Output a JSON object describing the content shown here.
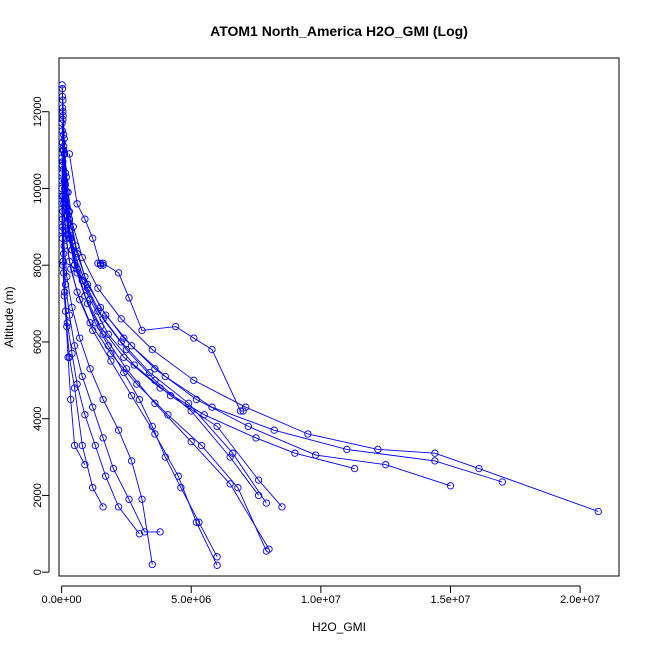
{
  "chart_data": {
    "type": "scatter",
    "title": "ATOM1 North_America H2O_GMI (Log)",
    "xlabel": "H2O_GMI",
    "ylabel": "Altitude (m)",
    "xlim": [
      -100000.0,
      21500000.0
    ],
    "ylim": [
      -100,
      13400
    ],
    "x_ticks": [
      0,
      5000000,
      10000000,
      15000000,
      20000000
    ],
    "x_tick_labels": [
      "0.0e+00",
      "5.0e+06",
      "1.0e+07",
      "1.5e+07",
      "2.0e+07"
    ],
    "y_ticks": [
      0,
      2000,
      4000,
      6000,
      8000,
      10000,
      12000
    ],
    "y_tick_labels": [
      "0",
      "2000",
      "4000",
      "6000",
      "8000",
      "10000",
      "12000"
    ],
    "series_color": "#0000ff",
    "marker": "open-circle",
    "connected": true,
    "grid": false,
    "legend": "none",
    "series": [
      {
        "x": [
          20000.0,
          30000.0,
          50000.0,
          80000.0,
          100000.0,
          150000.0,
          200000.0,
          250000.0,
          300000.0,
          400000.0,
          600000.0,
          900000.0,
          1300000.0,
          1800000.0,
          2400000.0,
          3000000.0,
          3500000.0,
          4000000.0,
          4600000.0,
          5300000.0,
          6000000.0
        ],
        "y": [
          12700,
          12400,
          12000,
          11400,
          10900,
          10400,
          9900,
          9400,
          8900,
          8400,
          7800,
          7200,
          6500,
          5900,
          5200,
          4500,
          3800,
          3000,
          2200,
          1300,
          400
        ]
      },
      {
        "x": [
          30000.0,
          50000.0,
          80000.0,
          120000.0,
          200000.0,
          350000.0,
          600000.0,
          1000000.0,
          1600000.0,
          2500000.0,
          3600000.0,
          5000000.0,
          6500000.0,
          8000000.0
        ],
        "y": [
          12600,
          11800,
          11000,
          10200,
          9500,
          8700,
          7900,
          7000,
          6200,
          5300,
          4400,
          3400,
          2300,
          600
        ]
      },
      {
        "x": [
          50000.0,
          100000.0,
          180000.0,
          300000.0,
          550000.0,
          900000.0,
          1500000.0,
          2400000.0,
          3600000.0,
          5200000.0,
          7200000.0,
          9800000.0,
          12500000.0,
          15000000.0
        ],
        "y": [
          12300,
          11300,
          10300,
          9400,
          8500,
          7700,
          6900,
          6100,
          5300,
          4500,
          3800,
          3050,
          2800,
          2250
        ]
      },
      {
        "x": [
          40000.0,
          80000.0,
          150000.0,
          300000.0,
          600000.0,
          1000000.0,
          1700000.0,
          2700000.0,
          4000000.0,
          5800000.0,
          8200000.0,
          11000000.0,
          14400000.0,
          17000000.0
        ],
        "y": [
          12100,
          11100,
          10100,
          9200,
          8300,
          7500,
          6700,
          5900,
          5100,
          4300,
          3700,
          3200,
          2900,
          2350
        ]
      },
      {
        "x": [
          60000.0,
          120000.0,
          250000.0,
          450000.0,
          800000.0,
          1400000.0,
          2300000.0,
          3500000.0,
          5100000.0,
          7100000.0,
          9500000.0,
          12200000.0,
          14400000.0,
          16100000.0,
          20700000.0
        ],
        "y": [
          11900,
          10900,
          9900,
          9000,
          8200,
          7400,
          6600,
          5800,
          5000,
          4300,
          3600,
          3200,
          3100,
          2700,
          1580
        ]
      },
      {
        "x": [
          20000.0,
          50000.0,
          120000.0,
          250000.0,
          500000.0,
          900000.0,
          1500000.0,
          2400000.0,
          3800000.0,
          5500000.0,
          7500000.0,
          9000000.0,
          11300000.0
        ],
        "y": [
          11700,
          10700,
          9700,
          8800,
          8000,
          7200,
          6400,
          5600,
          4800,
          4100,
          3500,
          3100,
          2700
        ]
      },
      {
        "x": [
          30000.0,
          70000.0,
          150000.0,
          300000.0,
          600000.0,
          1100000.0,
          1800000.0,
          2800000.0,
          4200000.0,
          6000000.0,
          7600000.0,
          8500000.0
        ],
        "y": [
          11500,
          10500,
          9600,
          8700,
          7900,
          7100,
          6200,
          5400,
          4600,
          3800,
          2400,
          1700
        ]
      },
      {
        "x": [
          40000.0,
          100000.0,
          200000.0,
          400000.0,
          800000.0,
          1400000.0,
          2300000.0,
          3400000.0,
          4900000.0,
          6600000.0,
          7900000.0
        ],
        "y": [
          11200,
          10200,
          9300,
          8400,
          7600,
          6800,
          6000,
          5200,
          4400,
          3100,
          1800
        ]
      },
      {
        "x": [
          50000.0,
          120000.0,
          250000.0,
          550000.0,
          1000000.0,
          1600000.0,
          2500000.0,
          3600000.0,
          5000000.0,
          6500000.0,
          7600000.0
        ],
        "y": [
          11000,
          10000,
          9100,
          8200,
          7400,
          6600,
          5800,
          5000,
          4200,
          3000,
          2000
        ]
      },
      {
        "x": [
          20000.0,
          60000.0,
          140000.0,
          300000.0,
          600000.0,
          1100000.0,
          1900000.0,
          2900000.0,
          4100000.0,
          5400000.0,
          6800000.0,
          7900000.0
        ],
        "y": [
          10800,
          9800,
          8900,
          8100,
          7300,
          6500,
          5700,
          4900,
          4100,
          3300,
          2200,
          550
        ]
      },
      {
        "x": [
          30000.0,
          80000.0,
          180000.0,
          350000.0,
          700000.0,
          1200000.0,
          1900000.0,
          2700000.0,
          3600000.0,
          4500000.0,
          5200000.0,
          6000000.0
        ],
        "y": [
          10600,
          9600,
          8700,
          7900,
          7100,
          6300,
          5500,
          4600,
          3600,
          2500,
          1300,
          180
        ]
      },
      {
        "x": [
          20000.0,
          50000.0,
          100000.0,
          200000.0,
          400000.0,
          700000.0,
          1100000.0,
          1600000.0,
          2200000.0,
          2700000.0,
          3100000.0,
          3500000.0
        ],
        "y": [
          10400,
          9400,
          8500,
          7700,
          6900,
          6100,
          5300,
          4500,
          3700,
          2900,
          1900,
          200
        ]
      },
      {
        "x": [
          20000.0,
          40000.0,
          80000.0,
          150000.0,
          300000.0,
          500000.0,
          800000.0,
          1200000.0,
          1600000.0,
          2000000.0,
          2600000.0,
          3200000.0,
          3800000.0
        ],
        "y": [
          10200,
          9200,
          8300,
          7500,
          6700,
          5900,
          5100,
          4300,
          3500,
          2700,
          1900,
          1050,
          1050
        ]
      },
      {
        "x": [
          10000.0,
          30000.0,
          60000.0,
          120000.0,
          220000.0,
          400000.0,
          600000.0,
          900000.0,
          1300000.0,
          1700000.0,
          2200000.0,
          3000000.0
        ],
        "y": [
          10000,
          9000,
          8100,
          7300,
          6500,
          5700,
          4900,
          4100,
          3300,
          2500,
          1700,
          1000
        ]
      },
      {
        "x": [
          10000.0,
          20000.0,
          50000.0,
          100000.0,
          200000.0,
          300000.0,
          500000.0,
          800000.0,
          1200000.0,
          1600000.0
        ],
        "y": [
          9800,
          8900,
          8000,
          7200,
          6400,
          5600,
          4800,
          3300,
          2200,
          1700
        ]
      },
      {
        "x": [
          10000.0,
          30000.0,
          80000.0,
          150000.0,
          250000.0,
          350000.0,
          500000.0,
          900000.0
        ],
        "y": [
          9600,
          8700,
          7800,
          6800,
          5600,
          4500,
          3300,
          2800
        ]
      },
      {
        "x": [
          300000.0,
          600000.0,
          900000.0,
          1200000.0,
          1500000.0,
          1600000.0
        ],
        "y": [
          10900,
          9600,
          9200,
          8700,
          8000,
          8000
        ]
      },
      {
        "x": [
          1400000.0,
          1500000.0,
          1600000.0,
          2200000.0,
          2600000.0,
          3100000.0,
          4400000.0,
          5100000.0,
          5800000.0,
          6900000.0,
          7000000.0
        ],
        "y": [
          8050,
          8050,
          8050,
          7800,
          7150,
          6300,
          6400,
          6100,
          5800,
          4200,
          4200
        ]
      }
    ]
  }
}
